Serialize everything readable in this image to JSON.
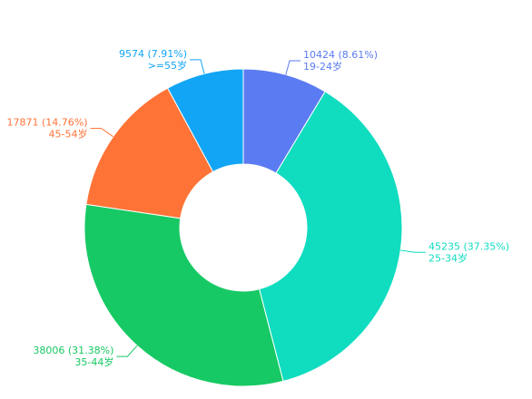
{
  "chart_data": {
    "type": "donut",
    "categories": [
      "19-24岁",
      "25-34岁",
      "35-44岁",
      "45-54岁",
      ">=55岁"
    ],
    "values": [
      10424,
      45235,
      38006,
      17871,
      9574
    ],
    "value_labels": [
      "10424 (8.61%)",
      "45235 (37.35%)",
      "38006 (31.38%)",
      "17871 (14.76%)",
      "9574 (7.91%)"
    ],
    "colors": [
      "#5b7bf2",
      "#10dcc0",
      "#17c964",
      "#ff7337",
      "#12a5f5"
    ]
  }
}
